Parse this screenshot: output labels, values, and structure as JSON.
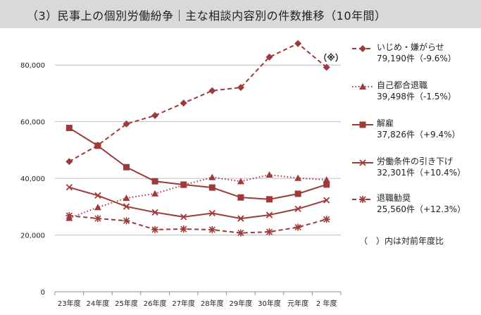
{
  "title": "（3）民事上の個別労働紛争｜主な相談内容別の件数推移（10年間）",
  "chart_data": {
    "type": "line",
    "categories": [
      "23年度",
      "24年度",
      "25年度",
      "26年度",
      "27年度",
      "28年度",
      "29年度",
      "30年度",
      "元年度",
      "2 年度"
    ],
    "ylim": [
      0,
      90000
    ],
    "yticks": [
      {
        "value": 0,
        "label": "0"
      },
      {
        "value": 20000,
        "label": "20,000"
      },
      {
        "value": 40000,
        "label": "40,000"
      },
      {
        "value": 60000,
        "label": "60,000"
      },
      {
        "value": 80000,
        "label": "80,000"
      }
    ],
    "annotation": "（※）",
    "footnote": "（　）内は対前年度比",
    "series": [
      {
        "name": "いじめ・嫌がらせ",
        "summary": "79,190件（-9.6%）",
        "style": "dashed",
        "marker": "diamond",
        "color": "#9e3a3a",
        "values": [
          45939,
          51670,
          59197,
          62191,
          66566,
          70917,
          72067,
          82797,
          87570,
          79190
        ]
      },
      {
        "name": "自己都合退職",
        "summary": "39,498件（-1.5%）",
        "style": "dotted",
        "marker": "triangle",
        "color": "#9e3a3a",
        "values": [
          25966,
          29763,
          33049,
          34626,
          37648,
          40364,
          38954,
          41258,
          40095,
          39498
        ]
      },
      {
        "name": "解雇",
        "summary": "37,826件（+9.4%）",
        "style": "solid",
        "marker": "square",
        "color": "#9e3a3a",
        "values": [
          57785,
          51515,
          43956,
          38966,
          37787,
          36760,
          33269,
          32614,
          34561,
          37826
        ]
      },
      {
        "name": "労働条件の引き下げ",
        "summary": "32,301件（+10.4%）",
        "style": "solid",
        "marker": "x",
        "color": "#9e3a3a",
        "values": [
          36849,
          33955,
          30067,
          28015,
          26392,
          27723,
          25841,
          27084,
          29236,
          32301
        ]
      },
      {
        "name": "退職勧奨",
        "summary": "25,560件（+12.3%）",
        "style": "dashed",
        "marker": "star",
        "color": "#9e3a3a",
        "values": [
          26828,
          25838,
          25041,
          21928,
          22122,
          21886,
          20736,
          21125,
          22762,
          25560
        ]
      }
    ]
  }
}
